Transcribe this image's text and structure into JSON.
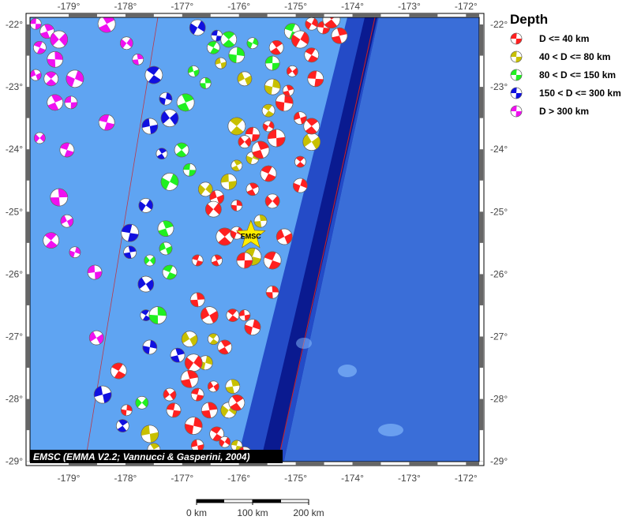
{
  "map": {
    "lon_range": [
      -179.68,
      -171.76
    ],
    "lat_range": [
      -29.05,
      -21.89
    ],
    "lon_ticks": [
      -179,
      -178,
      -177,
      -176,
      -175,
      -174,
      -173,
      -172
    ],
    "lat_ticks": [
      -22,
      -23,
      -24,
      -25,
      -26,
      -27,
      -28,
      -29
    ],
    "credit": "EMSC (EMMA V2.2; Vannucci & Gasperini, 2004)",
    "epicenter": {
      "label": "EMSC",
      "lon": -175.79,
      "lat": -25.38,
      "color": "#ffee00"
    },
    "colors": {
      "shallow_sea": "#5b9ff0",
      "deep_sea": "#3d6fd8",
      "trench": "#0a20a0",
      "plate_boundary": "#d02020"
    }
  },
  "legend": {
    "title": "Depth",
    "items": [
      {
        "label": "D <= 40 km",
        "color": "#ff2020"
      },
      {
        "label": "40 < D <= 80 km",
        "color": "#c8c000"
      },
      {
        "label": "80 < D <= 150 km",
        "color": "#20f020"
      },
      {
        "label": "150 < D <= 300 km",
        "color": "#1010e0"
      },
      {
        "label": "D > 300 km",
        "color": "#f010f0"
      }
    ]
  },
  "scale_bar": {
    "labels": [
      "0 km",
      "100 km",
      "200 km"
    ]
  },
  "events": [
    [
      -179.58,
      -21.99,
      4
    ],
    [
      -179.38,
      -22.11,
      4
    ],
    [
      -179.17,
      -22.24,
      4
    ],
    [
      -179.51,
      -22.37,
      4
    ],
    [
      -179.24,
      -22.56,
      4
    ],
    [
      -179.58,
      -22.81,
      4
    ],
    [
      -179.31,
      -22.87,
      4
    ],
    [
      -178.89,
      -22.87,
      4
    ],
    [
      -178.96,
      -23.25,
      4
    ],
    [
      -179.24,
      -23.25,
      4
    ],
    [
      -179.51,
      -23.82,
      4
    ],
    [
      -179.03,
      -24.01,
      4
    ],
    [
      -179.17,
      -24.77,
      4
    ],
    [
      -179.03,
      -25.15,
      4
    ],
    [
      -179.31,
      -25.46,
      4
    ],
    [
      -178.89,
      -25.65,
      4
    ],
    [
      -178.54,
      -25.97,
      4
    ],
    [
      -178.33,
      -21.99,
      4
    ],
    [
      -177.98,
      -22.3,
      4
    ],
    [
      -178.33,
      -23.57,
      4
    ],
    [
      -177.78,
      -22.56,
      4
    ],
    [
      -178.51,
      -27.02,
      4
    ],
    [
      -177.5,
      -22.81,
      3
    ],
    [
      -177.29,
      -23.19,
      3
    ],
    [
      -177.57,
      -23.63,
      3
    ],
    [
      -177.36,
      -24.07,
      3
    ],
    [
      -177.64,
      -24.9,
      3
    ],
    [
      -177.92,
      -25.34,
      3
    ],
    [
      -177.92,
      -25.65,
      3
    ],
    [
      -177.64,
      -26.16,
      3
    ],
    [
      -177.64,
      -26.66,
      3
    ],
    [
      -177.57,
      -27.17,
      3
    ],
    [
      -178.4,
      -27.93,
      3
    ],
    [
      -178.05,
      -28.43,
      3
    ],
    [
      -176.73,
      -22.05,
      3
    ],
    [
      -176.39,
      -22.18,
      3
    ],
    [
      -177.08,
      -27.3,
      3
    ],
    [
      -177.22,
      -23.5,
      3
    ],
    [
      -176.45,
      -22.37,
      2
    ],
    [
      -176.04,
      -22.49,
      2
    ],
    [
      -176.8,
      -22.75,
      2
    ],
    [
      -177.01,
      -24.01,
      2
    ],
    [
      -177.22,
      -24.52,
      2
    ],
    [
      -176.87,
      -24.33,
      2
    ],
    [
      -177.29,
      -25.27,
      2
    ],
    [
      -177.57,
      -25.78,
      2
    ],
    [
      -177.22,
      -25.97,
      2
    ],
    [
      -177.43,
      -26.66,
      2
    ],
    [
      -177.29,
      -25.59,
      2
    ],
    [
      -176.18,
      -22.24,
      2
    ],
    [
      -175.76,
      -22.3,
      2
    ],
    [
      -175.41,
      -22.62,
      2
    ],
    [
      -176.94,
      -23.25,
      2
    ],
    [
      -177.71,
      -28.06,
      2
    ],
    [
      -175.06,
      -22.11,
      2
    ],
    [
      -176.59,
      -22.94,
      2
    ],
    [
      -175.9,
      -22.87,
      1
    ],
    [
      -176.04,
      -23.63,
      1
    ],
    [
      -175.76,
      -24.14,
      1
    ],
    [
      -176.18,
      -24.52,
      1
    ],
    [
      -176.04,
      -24.26,
      1
    ],
    [
      -176.59,
      -24.64,
      1
    ],
    [
      -175.76,
      -25.72,
      1
    ],
    [
      -175.62,
      -25.15,
      1
    ],
    [
      -176.87,
      -27.04,
      1
    ],
    [
      -176.45,
      -27.04,
      1
    ],
    [
      -176.59,
      -27.42,
      1
    ],
    [
      -177.57,
      -28.56,
      1
    ],
    [
      -177.5,
      -28.81,
      1
    ],
    [
      -176.18,
      -28.18,
      1
    ],
    [
      -176.04,
      -28.75,
      1
    ],
    [
      -176.11,
      -27.8,
      1
    ],
    [
      -174.72,
      -23.88,
      1
    ],
    [
      -175.48,
      -23.38,
      1
    ],
    [
      -175.41,
      -23.0,
      1
    ],
    [
      -176.32,
      -22.62,
      1
    ],
    [
      -175.34,
      -22.37,
      0
    ],
    [
      -174.92,
      -22.24,
      0
    ],
    [
      -174.51,
      -22.05,
      0
    ],
    [
      -174.23,
      -22.18,
      0
    ],
    [
      -175.06,
      -22.75,
      0
    ],
    [
      -174.72,
      -22.49,
      0
    ],
    [
      -175.2,
      -23.25,
      0
    ],
    [
      -174.92,
      -23.5,
      0
    ],
    [
      -174.72,
      -23.63,
      0
    ],
    [
      -175.48,
      -23.63,
      0
    ],
    [
      -175.76,
      -23.76,
      0
    ],
    [
      -175.62,
      -24.01,
      0
    ],
    [
      -175.9,
      -23.88,
      0
    ],
    [
      -175.48,
      -24.39,
      0
    ],
    [
      -176.04,
      -24.9,
      0
    ],
    [
      -176.39,
      -24.77,
      0
    ],
    [
      -176.25,
      -25.4,
      0
    ],
    [
      -176.04,
      -25.34,
      0
    ],
    [
      -175.9,
      -25.78,
      0
    ],
    [
      -176.39,
      -25.78,
      0
    ],
    [
      -175.41,
      -24.83,
      0
    ],
    [
      -175.41,
      -25.78,
      0
    ],
    [
      -175.41,
      -26.29,
      0
    ],
    [
      -175.2,
      -25.4,
      0
    ],
    [
      -174.92,
      -24.2,
      0
    ],
    [
      -174.92,
      -24.58,
      0
    ],
    [
      -175.34,
      -23.82,
      0
    ],
    [
      -175.76,
      -24.64,
      0
    ],
    [
      -176.45,
      -24.96,
      0
    ],
    [
      -176.73,
      -25.78,
      0
    ],
    [
      -176.73,
      -26.41,
      0
    ],
    [
      -176.52,
      -26.66,
      0
    ],
    [
      -176.11,
      -26.66,
      0
    ],
    [
      -175.76,
      -26.85,
      0
    ],
    [
      -175.9,
      -26.66,
      0
    ],
    [
      -176.25,
      -27.17,
      0
    ],
    [
      -176.8,
      -27.42,
      0
    ],
    [
      -176.73,
      -27.93,
      0
    ],
    [
      -176.52,
      -28.18,
      0
    ],
    [
      -176.45,
      -27.8,
      0
    ],
    [
      -176.39,
      -28.56,
      0
    ],
    [
      -176.8,
      -28.43,
      0
    ],
    [
      -176.73,
      -28.75,
      0
    ],
    [
      -176.04,
      -28.06,
      0
    ],
    [
      -176.25,
      -28.69,
      0
    ],
    [
      -177.15,
      -28.18,
      0
    ],
    [
      -176.87,
      -27.68,
      0
    ],
    [
      -177.22,
      -27.93,
      0
    ],
    [
      -178.12,
      -27.55,
      0
    ],
    [
      -177.98,
      -28.18,
      0
    ],
    [
      -175.9,
      -28.88,
      0
    ],
    [
      -174.37,
      -21.92,
      0
    ],
    [
      -174.72,
      -21.99,
      0
    ],
    [
      -174.65,
      -22.87,
      0
    ],
    [
      -175.13,
      -23.06,
      0
    ]
  ]
}
